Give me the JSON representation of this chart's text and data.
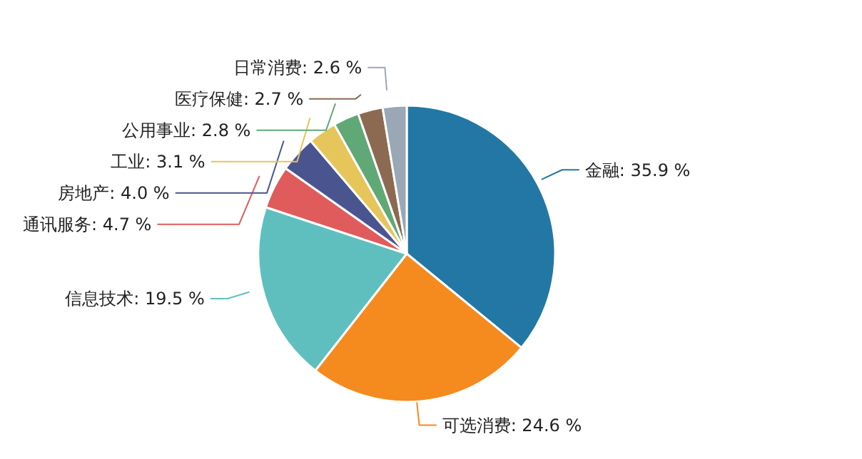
{
  "chart_data": {
    "type": "pie",
    "categories": [
      "金融",
      "可选消费",
      "信息技术",
      "通讯服务",
      "房地产",
      "工业",
      "公用事业",
      "医疗保健",
      "日常消费"
    ],
    "values": [
      35.9,
      24.6,
      19.5,
      4.7,
      4.0,
      3.1,
      2.8,
      2.7,
      2.6
    ],
    "value_labels": [
      "35.9 %",
      "24.6 %",
      "19.5 %",
      "4.7 %",
      "4.0 %",
      "3.1 %",
      "2.8 %",
      "2.7 %",
      "2.6 %"
    ],
    "colors": [
      "#2277a5",
      "#f58a1f",
      "#5fbfbf",
      "#e05b5b",
      "#4a5590",
      "#e6c55a",
      "#61a877",
      "#8c6a52",
      "#9aa7b4"
    ]
  }
}
